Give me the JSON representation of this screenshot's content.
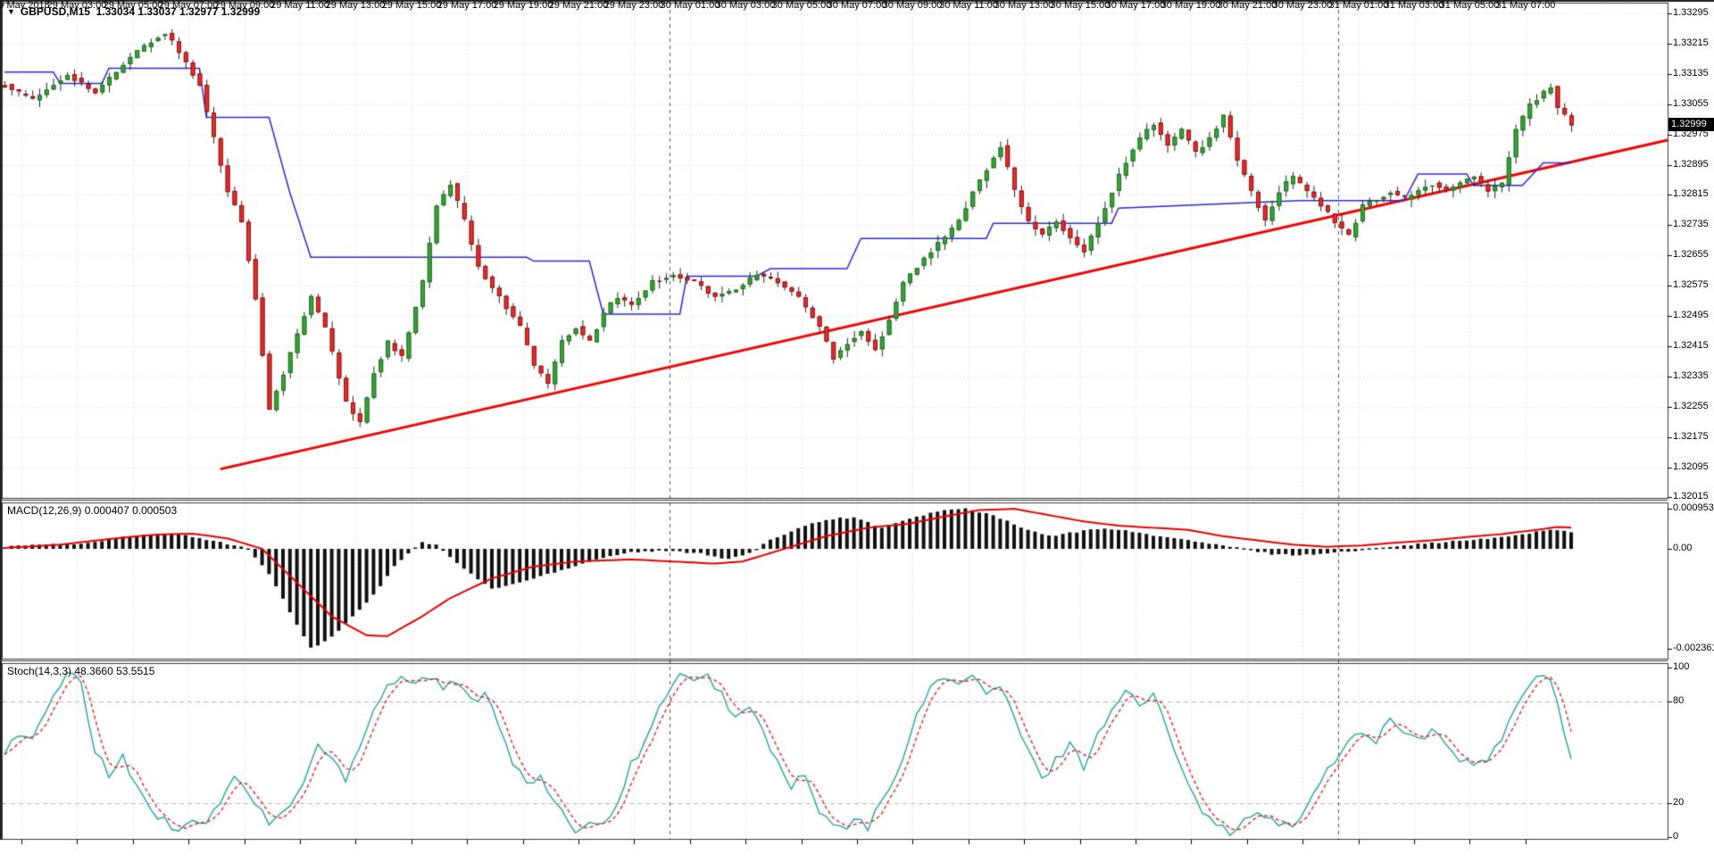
{
  "title": {
    "symbol_period": "GBPUSD,M15",
    "ohlc": "1.33034 1.33037 1.32977 1.32999",
    "dropdown_icon": "chevron-down-icon"
  },
  "price_axis": {
    "labels": [
      "1.33295",
      "1.33215",
      "1.33135",
      "1.33055",
      "1.32975",
      "1.32895",
      "1.32815",
      "1.32735",
      "1.32655",
      "1.32575",
      "1.32495",
      "1.32415",
      "1.32335",
      "1.32255",
      "1.32175",
      "1.32095",
      "1.32015"
    ],
    "current_price": "1.32999"
  },
  "time_axis": {
    "labels": [
      "29 May 2018",
      "29 May 03:00",
      "29 May 05:00",
      "29 May 07:00",
      "29 May 09:00",
      "29 May 11:00",
      "29 May 13:00",
      "29 May 15:00",
      "29 May 17:00",
      "29 May 19:00",
      "29 May 21:00",
      "29 May 23:00",
      "30 May 01:00",
      "30 May 03:00",
      "30 May 05:00",
      "30 May 07:00",
      "30 May 09:00",
      "30 May 11:00",
      "30 May 13:00",
      "30 May 15:00",
      "30 May 17:00",
      "30 May 19:00",
      "30 May 21:00",
      "30 May 23:00",
      "31 May 01:00",
      "31 May 03:00",
      "31 May 05:00",
      "31 May 07:00"
    ]
  },
  "indicators": {
    "macd": {
      "label": "MACD(12,26,9) 0.000407 0.000503",
      "axis_labels": [
        "0.000953",
        "0.00",
        "-0.002361"
      ]
    },
    "stoch": {
      "label": "Stoch(14,3,3) 48.3660 53.5515",
      "axis_labels": [
        "100",
        "80",
        "20",
        "0"
      ]
    }
  },
  "colors": {
    "bull_candle": "#3aa33a",
    "bull_border": "#1d6b1d",
    "bear_candle": "#e03030",
    "bear_border": "#8f1010",
    "wick": "#222222",
    "hilo_line": "#2b2bd5",
    "trendline": "#f00505",
    "macd_hist": "#111111",
    "macd_signal": "#e80000",
    "stoch_k": "#2fa9a0",
    "stoch_d": "#e03030",
    "grid": "#ece8ec",
    "level_line": "#b4b4b4",
    "separator": "#555555",
    "border": "#3a3a3a",
    "price_tag_bg": "#000000",
    "price_tag_fg": "#ffffff"
  },
  "chart_data": {
    "type": "candlestick+indicators",
    "symbol": "GBPUSD",
    "timeframe": "M15",
    "bars": 226,
    "start_time": "29 May 2018 00:00",
    "minutes_per_bar": 15,
    "price_axis_range": [
      1.32015,
      1.33295
    ],
    "macd_axis_range": [
      -0.002361,
      0.000953
    ],
    "stoch_axis_range": [
      0,
      100
    ],
    "stoch_levels": [
      20,
      80
    ],
    "current_bar_ohlc": [
      1.33034,
      1.33037,
      1.32977,
      1.32999
    ],
    "price_path_anchors": [
      [
        0,
        1.33105
      ],
      [
        4,
        1.33065
      ],
      [
        9,
        1.33135
      ],
      [
        13,
        1.33085
      ],
      [
        19,
        1.33195
      ],
      [
        23,
        1.33245
      ],
      [
        26,
        1.33165
      ],
      [
        28,
        1.33105
      ],
      [
        30,
        1.32965
      ],
      [
        32,
        1.32825
      ],
      [
        34,
        1.32745
      ],
      [
        36,
        1.32545
      ],
      [
        38,
        1.32245
      ],
      [
        40,
        1.32345
      ],
      [
        42,
        1.32445
      ],
      [
        44,
        1.32545
      ],
      [
        46,
        1.32465
      ],
      [
        49,
        1.32265
      ],
      [
        51,
        1.32215
      ],
      [
        53,
        1.32345
      ],
      [
        55,
        1.32425
      ],
      [
        57,
        1.32385
      ],
      [
        60,
        1.32585
      ],
      [
        62,
        1.32785
      ],
      [
        64,
        1.32845
      ],
      [
        66,
        1.32745
      ],
      [
        68,
        1.32625
      ],
      [
        71,
        1.32545
      ],
      [
        74,
        1.32465
      ],
      [
        76,
        1.32365
      ],
      [
        78,
        1.32315
      ],
      [
        80,
        1.32425
      ],
      [
        82,
        1.32465
      ],
      [
        84,
        1.32425
      ],
      [
        86,
        1.32505
      ],
      [
        88,
        1.32545
      ],
      [
        90,
        1.32525
      ],
      [
        93,
        1.32585
      ],
      [
        96,
        1.32605
      ],
      [
        99,
        1.32585
      ],
      [
        102,
        1.32545
      ],
      [
        105,
        1.32565
      ],
      [
        108,
        1.32605
      ],
      [
        111,
        1.32585
      ],
      [
        114,
        1.32545
      ],
      [
        117,
        1.32465
      ],
      [
        119,
        1.32385
      ],
      [
        121,
        1.32425
      ],
      [
        123,
        1.32455
      ],
      [
        125,
        1.32405
      ],
      [
        127,
        1.32485
      ],
      [
        129,
        1.32585
      ],
      [
        131,
        1.32625
      ],
      [
        133,
        1.32665
      ],
      [
        135,
        1.32705
      ],
      [
        137,
        1.32745
      ],
      [
        139,
        1.32825
      ],
      [
        141,
        1.32885
      ],
      [
        143,
        1.32945
      ],
      [
        145,
        1.32825
      ],
      [
        147,
        1.32745
      ],
      [
        149,
        1.32705
      ],
      [
        151,
        1.32745
      ],
      [
        153,
        1.32705
      ],
      [
        155,
        1.32665
      ],
      [
        157,
        1.32745
      ],
      [
        159,
        1.32825
      ],
      [
        161,
        1.32905
      ],
      [
        163,
        1.32965
      ],
      [
        165,
        1.33005
      ],
      [
        167,
        1.32945
      ],
      [
        169,
        1.32985
      ],
      [
        171,
        1.32925
      ],
      [
        173,
        1.32965
      ],
      [
        175,
        1.33025
      ],
      [
        177,
        1.32905
      ],
      [
        179,
        1.32825
      ],
      [
        181,
        1.32745
      ],
      [
        183,
        1.32825
      ],
      [
        185,
        1.32865
      ],
      [
        187,
        1.32825
      ],
      [
        189,
        1.32785
      ],
      [
        191,
        1.32745
      ],
      [
        193,
        1.32705
      ],
      [
        195,
        1.32785
      ],
      [
        197,
        1.32805
      ],
      [
        199,
        1.32825
      ],
      [
        201,
        1.32805
      ],
      [
        203,
        1.32825
      ],
      [
        205,
        1.32845
      ],
      [
        207,
        1.32825
      ],
      [
        209,
        1.32845
      ],
      [
        211,
        1.32865
      ],
      [
        213,
        1.32825
      ],
      [
        215,
        1.32845
      ],
      [
        217,
        1.32985
      ],
      [
        219,
        1.33055
      ],
      [
        221,
        1.33085
      ],
      [
        222,
        1.33105
      ],
      [
        223,
        1.33045
      ],
      [
        224,
        1.33025
      ],
      [
        225,
        1.32999
      ]
    ],
    "hilo_blue_anchors": [
      [
        0,
        1.3314
      ],
      [
        7,
        1.3314
      ],
      [
        8,
        1.3311
      ],
      [
        14,
        1.3311
      ],
      [
        15,
        1.3315
      ],
      [
        28,
        1.3315
      ],
      [
        29,
        1.3302
      ],
      [
        38,
        1.3302
      ],
      [
        41,
        1.3282
      ],
      [
        44,
        1.3265
      ],
      [
        75,
        1.3265
      ],
      [
        76,
        1.3264
      ],
      [
        84,
        1.3264
      ],
      [
        86,
        1.325
      ],
      [
        97,
        1.325
      ],
      [
        98,
        1.326
      ],
      [
        108,
        1.326
      ],
      [
        110,
        1.3262
      ],
      [
        121,
        1.3262
      ],
      [
        123,
        1.327
      ],
      [
        141,
        1.327
      ],
      [
        142,
        1.3274
      ],
      [
        159,
        1.3274
      ],
      [
        160,
        1.3278
      ],
      [
        186,
        1.328
      ],
      [
        201,
        1.328
      ],
      [
        203,
        1.3287
      ],
      [
        210,
        1.3287
      ],
      [
        211,
        1.3284
      ],
      [
        218,
        1.3284
      ],
      [
        221,
        1.329
      ],
      [
        225,
        1.329
      ]
    ],
    "trendline_red": {
      "from_bar": 31,
      "from_price": 1.3209,
      "to_right_edge": true,
      "to_price": 1.3296
    },
    "day_separators_bars": [
      95.5,
      191.5
    ],
    "macd_hist_anchors": [
      [
        0,
        5e-05
      ],
      [
        5,
        0.0001
      ],
      [
        11,
        0.00012
      ],
      [
        18,
        0.0003
      ],
      [
        24,
        0.00036
      ],
      [
        30,
        0.0002
      ],
      [
        35,
        0.0
      ],
      [
        38,
        -0.0006
      ],
      [
        41,
        -0.0015
      ],
      [
        44,
        -0.00236
      ],
      [
        47,
        -0.0021
      ],
      [
        50,
        -0.0016
      ],
      [
        53,
        -0.0011
      ],
      [
        56,
        -0.0004
      ],
      [
        58,
        -0.0001
      ],
      [
        60,
        0.00015
      ],
      [
        62,
        0.0001
      ],
      [
        64,
        -0.0002
      ],
      [
        67,
        -0.0006
      ],
      [
        70,
        -0.00095
      ],
      [
        74,
        -0.0008
      ],
      [
        78,
        -0.0006
      ],
      [
        82,
        -0.0004
      ],
      [
        86,
        -0.0002
      ],
      [
        90,
        -8e-05
      ],
      [
        95,
        -5e-05
      ],
      [
        100,
        -0.0001
      ],
      [
        104,
        -0.00025
      ],
      [
        107,
        -0.0001
      ],
      [
        110,
        0.0002
      ],
      [
        114,
        0.0005
      ],
      [
        118,
        0.0007
      ],
      [
        122,
        0.00075
      ],
      [
        126,
        0.0005
      ],
      [
        130,
        0.0007
      ],
      [
        134,
        0.0009
      ],
      [
        138,
        0.00095
      ],
      [
        142,
        0.0008
      ],
      [
        146,
        0.0005
      ],
      [
        150,
        0.0003
      ],
      [
        154,
        0.0004
      ],
      [
        158,
        0.0005
      ],
      [
        162,
        0.0004
      ],
      [
        166,
        0.0003
      ],
      [
        170,
        0.0002
      ],
      [
        174,
        0.0001
      ],
      [
        178,
        0.0
      ],
      [
        182,
        -0.00012
      ],
      [
        186,
        -0.00015
      ],
      [
        190,
        -0.0001
      ],
      [
        194,
        -5e-05
      ],
      [
        198,
        5e-05
      ],
      [
        202,
        0.0001
      ],
      [
        206,
        0.00015
      ],
      [
        210,
        0.0002
      ],
      [
        214,
        0.00025
      ],
      [
        218,
        0.00035
      ],
      [
        222,
        0.00045
      ],
      [
        224,
        0.00042
      ],
      [
        225,
        0.000407
      ]
    ],
    "macd_signal_anchors": [
      [
        0,
        2e-05
      ],
      [
        8,
        0.0001
      ],
      [
        16,
        0.00025
      ],
      [
        22,
        0.00034
      ],
      [
        27,
        0.00036
      ],
      [
        32,
        0.00025
      ],
      [
        37,
        0.0
      ],
      [
        42,
        -0.0008
      ],
      [
        47,
        -0.0016
      ],
      [
        52,
        -0.00205
      ],
      [
        55,
        -0.00207
      ],
      [
        60,
        -0.0016
      ],
      [
        64,
        -0.00117
      ],
      [
        70,
        -0.0007
      ],
      [
        76,
        -0.00042
      ],
      [
        82,
        -0.0003
      ],
      [
        90,
        -0.00025
      ],
      [
        96,
        -0.0003
      ],
      [
        102,
        -0.00035
      ],
      [
        106,
        -0.0003
      ],
      [
        110,
        -0.0001
      ],
      [
        114,
        0.0001
      ],
      [
        118,
        0.0003
      ],
      [
        124,
        0.0005
      ],
      [
        130,
        0.0006
      ],
      [
        136,
        0.0008
      ],
      [
        140,
        0.00092
      ],
      [
        145,
        0.00095
      ],
      [
        150,
        0.0008
      ],
      [
        155,
        0.00065
      ],
      [
        160,
        0.00055
      ],
      [
        165,
        0.0005
      ],
      [
        170,
        0.00045
      ],
      [
        175,
        0.0003
      ],
      [
        180,
        0.0002
      ],
      [
        185,
        0.0001
      ],
      [
        190,
        5e-05
      ],
      [
        195,
        8e-05
      ],
      [
        200,
        0.00015
      ],
      [
        205,
        0.0002
      ],
      [
        210,
        0.00028
      ],
      [
        215,
        0.00035
      ],
      [
        220,
        0.00045
      ],
      [
        223,
        0.00052
      ],
      [
        225,
        0.000503
      ]
    ],
    "stoch_k_anchors": [
      [
        0,
        50
      ],
      [
        2,
        62
      ],
      [
        4,
        56
      ],
      [
        6,
        75
      ],
      [
        9,
        95
      ],
      [
        11,
        92
      ],
      [
        13,
        50
      ],
      [
        15,
        38
      ],
      [
        17,
        46
      ],
      [
        19,
        30
      ],
      [
        22,
        12
      ],
      [
        25,
        5
      ],
      [
        27,
        12
      ],
      [
        29,
        7
      ],
      [
        31,
        22
      ],
      [
        33,
        35
      ],
      [
        35,
        26
      ],
      [
        38,
        8
      ],
      [
        40,
        14
      ],
      [
        43,
        32
      ],
      [
        45,
        55
      ],
      [
        47,
        46
      ],
      [
        49,
        35
      ],
      [
        51,
        55
      ],
      [
        53,
        75
      ],
      [
        55,
        90
      ],
      [
        57,
        95
      ],
      [
        59,
        91
      ],
      [
        61,
        95
      ],
      [
        63,
        88
      ],
      [
        65,
        91
      ],
      [
        67,
        80
      ],
      [
        69,
        86
      ],
      [
        71,
        68
      ],
      [
        73,
        45
      ],
      [
        75,
        30
      ],
      [
        77,
        36
      ],
      [
        79,
        18
      ],
      [
        82,
        5
      ],
      [
        84,
        10
      ],
      [
        86,
        7
      ],
      [
        88,
        22
      ],
      [
        90,
        42
      ],
      [
        93,
        65
      ],
      [
        95,
        85
      ],
      [
        97,
        96
      ],
      [
        99,
        90
      ],
      [
        101,
        94
      ],
      [
        103,
        85
      ],
      [
        105,
        70
      ],
      [
        107,
        76
      ],
      [
        109,
        62
      ],
      [
        111,
        44
      ],
      [
        113,
        30
      ],
      [
        115,
        36
      ],
      [
        117,
        14
      ],
      [
        120,
        4
      ],
      [
        122,
        10
      ],
      [
        124,
        6
      ],
      [
        126,
        20
      ],
      [
        129,
        48
      ],
      [
        131,
        70
      ],
      [
        133,
        88
      ],
      [
        135,
        96
      ],
      [
        137,
        90
      ],
      [
        139,
        94
      ],
      [
        141,
        85
      ],
      [
        143,
        89
      ],
      [
        145,
        70
      ],
      [
        147,
        50
      ],
      [
        149,
        34
      ],
      [
        151,
        45
      ],
      [
        153,
        56
      ],
      [
        155,
        42
      ],
      [
        157,
        60
      ],
      [
        159,
        76
      ],
      [
        161,
        86
      ],
      [
        163,
        78
      ],
      [
        165,
        83
      ],
      [
        167,
        64
      ],
      [
        169,
        44
      ],
      [
        171,
        24
      ],
      [
        173,
        10
      ],
      [
        176,
        3
      ],
      [
        178,
        8
      ],
      [
        180,
        15
      ],
      [
        182,
        9
      ],
      [
        185,
        5
      ],
      [
        187,
        18
      ],
      [
        189,
        35
      ],
      [
        191,
        43
      ],
      [
        193,
        56
      ],
      [
        195,
        63
      ],
      [
        197,
        57
      ],
      [
        199,
        70
      ],
      [
        201,
        64
      ],
      [
        203,
        57
      ],
      [
        205,
        62
      ],
      [
        207,
        54
      ],
      [
        209,
        47
      ],
      [
        211,
        41
      ],
      [
        213,
        45
      ],
      [
        215,
        58
      ],
      [
        217,
        76
      ],
      [
        219,
        88
      ],
      [
        220,
        96
      ],
      [
        222,
        90
      ],
      [
        223,
        80
      ],
      [
        224,
        62
      ],
      [
        225,
        48.37
      ]
    ],
    "stoch_current": {
      "k": 48.366,
      "d": 53.5515
    },
    "macd_current": {
      "main": 0.000407,
      "signal": 0.000503
    }
  }
}
